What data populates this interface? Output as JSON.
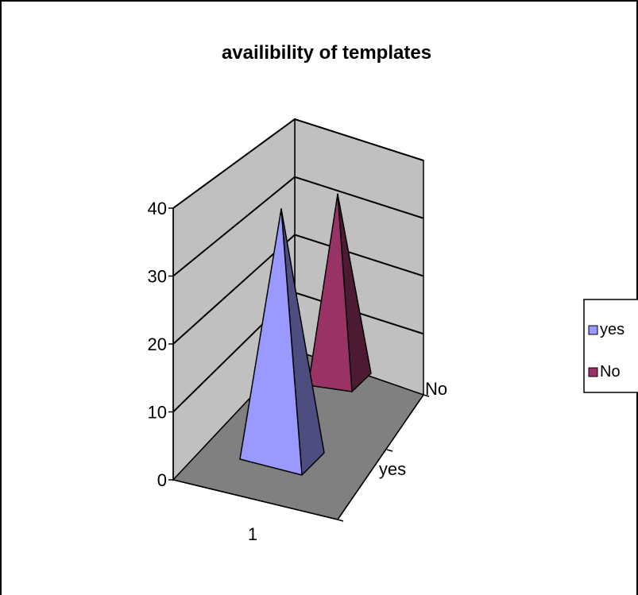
{
  "chart_data": {
    "type": "bar",
    "shape": "3d-pyramid",
    "title": "availibility of templates",
    "categories": [
      "1"
    ],
    "series": [
      {
        "name": "yes",
        "values": [
          40
        ],
        "color": "#9999ff"
      },
      {
        "name": "No",
        "values": [
          30
        ],
        "color": "#993366"
      }
    ],
    "y_ticks": [
      0,
      10,
      20,
      30,
      40
    ],
    "ylim": [
      0,
      40
    ],
    "depth_labels": [
      "yes",
      "No"
    ],
    "grid": true,
    "legend": "right",
    "colors": {
      "wall": "#c0c0c0",
      "floor": "#808080",
      "border": "#000000",
      "background": "#ffffff"
    }
  }
}
